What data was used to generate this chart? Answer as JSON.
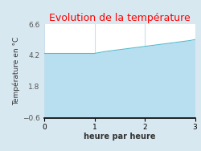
{
  "title": "Evolution de la température",
  "title_color": "#ff0000",
  "xlabel": "heure par heure",
  "ylabel": "Température en °C",
  "background_color": "#d8e8f0",
  "plot_bg_color": "#ffffff",
  "fill_color": "#b8dff0",
  "line_color": "#55bbcc",
  "xlim": [
    0,
    3
  ],
  "ylim": [
    -0.6,
    6.6
  ],
  "xticks": [
    0,
    1,
    2,
    3
  ],
  "yticks": [
    -0.6,
    1.8,
    4.2,
    6.6
  ],
  "x": [
    0.0,
    0.5,
    1.0,
    1.1,
    1.2,
    1.3,
    1.4,
    1.5,
    1.6,
    1.7,
    1.8,
    1.9,
    2.0,
    2.1,
    2.2,
    2.3,
    2.4,
    2.5,
    2.6,
    2.7,
    2.8,
    2.9,
    3.0
  ],
  "y": [
    4.35,
    4.35,
    4.35,
    4.42,
    4.49,
    4.54,
    4.59,
    4.64,
    4.69,
    4.74,
    4.79,
    4.84,
    4.89,
    4.94,
    4.99,
    5.04,
    5.09,
    5.14,
    5.19,
    5.24,
    5.29,
    5.34,
    5.42
  ],
  "title_fontsize": 9,
  "label_fontsize": 7,
  "tick_fontsize": 6.5,
  "ylabel_fontsize": 6.5
}
